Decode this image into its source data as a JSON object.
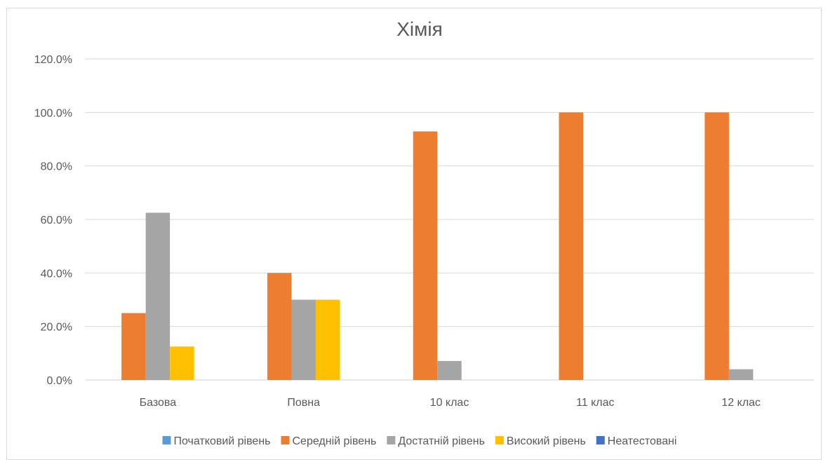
{
  "chart_data": {
    "type": "bar",
    "title": "Хімія",
    "xlabel": "",
    "ylabel": "",
    "ylim": [
      0,
      1.2
    ],
    "yticks": [
      "0.0%",
      "20.0%",
      "40.0%",
      "60.0%",
      "80.0%",
      "100.0%",
      "120.0%"
    ],
    "ytick_values": [
      0,
      0.2,
      0.4,
      0.6,
      0.8,
      1.0,
      1.2
    ],
    "grid": true,
    "legend_position": "bottom",
    "categories": [
      "Базова",
      "Повна",
      "10 клас",
      "11 клас",
      "12 клас"
    ],
    "series": [
      {
        "name": "Початковий рівень",
        "color": "#5b9bd5",
        "values": [
          0,
          0,
          0,
          0,
          0
        ]
      },
      {
        "name": "Середній рівень",
        "color": "#ed7d31",
        "values": [
          0.25,
          0.4,
          0.929,
          1.0,
          1.0
        ]
      },
      {
        "name": "Достатній рівень",
        "color": "#a5a5a5",
        "values": [
          0.625,
          0.3,
          0.071,
          0,
          0.04
        ]
      },
      {
        "name": "Високий рівень",
        "color": "#ffc000",
        "values": [
          0.125,
          0.3,
          0,
          0,
          0
        ]
      },
      {
        "name": "Неатестовані",
        "color": "#4472c4",
        "values": [
          0,
          0,
          0,
          0,
          0
        ]
      }
    ]
  }
}
